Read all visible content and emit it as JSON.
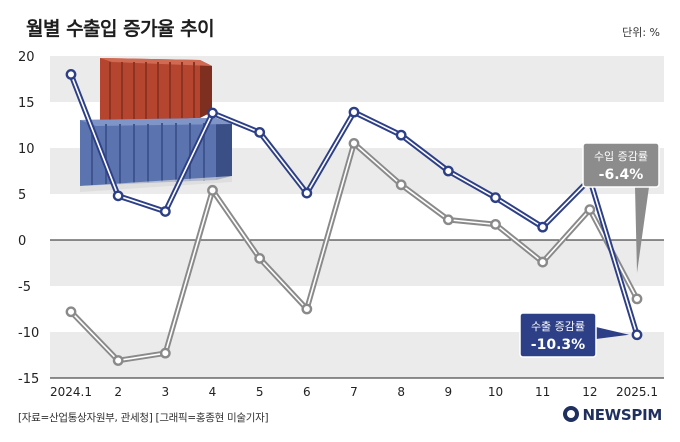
{
  "title": "월별 수출입 증가율 추이",
  "unit": "단위: %",
  "source": "[자료=산업통상자원부, 관세청] [그래픽=홍종현 미술기자]",
  "logo": "NEWSPIM",
  "colors": {
    "export": "#2d3f86",
    "import": "#8a8a8a",
    "export_badge": "#2d3f86",
    "import_badge": "#8c8c8c",
    "band": "#ebebeb"
  },
  "chart_data": {
    "type": "line",
    "categories": [
      "2024.1",
      "2",
      "3",
      "4",
      "5",
      "6",
      "7",
      "8",
      "9",
      "10",
      "11",
      "12",
      "2025.1"
    ],
    "ylim": [
      -15,
      20
    ],
    "yticks": [
      20,
      15,
      10,
      5,
      0,
      -5,
      -10,
      -15
    ],
    "series": [
      {
        "name": "수출 증감률",
        "values": [
          18.0,
          4.8,
          3.1,
          13.8,
          11.7,
          5.1,
          13.9,
          11.4,
          7.5,
          4.6,
          1.4,
          6.6,
          -10.3
        ]
      },
      {
        "name": "수입 증감률",
        "values": [
          -7.8,
          -13.1,
          -12.3,
          5.4,
          -2.0,
          -7.5,
          10.5,
          6.0,
          2.2,
          1.7,
          -2.4,
          3.3,
          -6.4
        ]
      }
    ],
    "annotations": [
      {
        "series": "수입 증감률",
        "label": "수입 증감률",
        "value": "-6.4%"
      },
      {
        "series": "수출 증감률",
        "label": "수출 증감률",
        "value": "-10.3%"
      }
    ]
  }
}
